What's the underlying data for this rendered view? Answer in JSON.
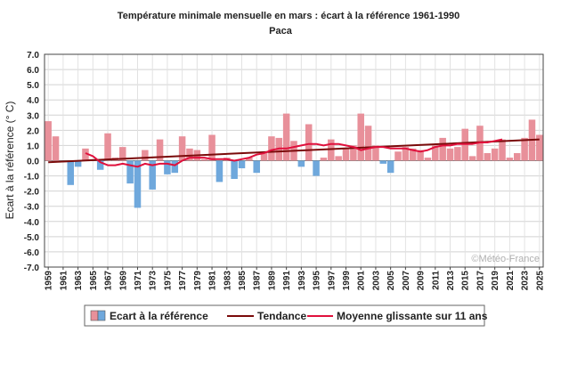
{
  "chart_data": {
    "type": "bar",
    "title": "Température minimale mensuelle en mars : écart à la référence 1961-1990",
    "subtitle": "Paca",
    "ylabel": "Ecart à la référence (° C)",
    "xlabel": "",
    "ylim": [
      -7,
      7
    ],
    "yticks": [
      "7.0",
      "6.0",
      "5.0",
      "4.0",
      "3.0",
      "2.0",
      "1.0",
      "0.0",
      "-1.0",
      "-2.0",
      "-3.0",
      "-4.0",
      "-5.0",
      "-6.0",
      "-7.0"
    ],
    "grid": true,
    "watermark": "©Météo-France",
    "x_labels_rotated": [
      "1959",
      "1961",
      "1963",
      "1965",
      "1967",
      "1969",
      "1971",
      "1973",
      "1975",
      "1977",
      "1979",
      "1981",
      "1983",
      "1985",
      "1987",
      "1989",
      "1991",
      "1993",
      "1995",
      "1997",
      "1999",
      "2001",
      "2003",
      "2005",
      "2007",
      "2009",
      "2011",
      "2013",
      "2015",
      "2017",
      "2019",
      "2021",
      "2023",
      "2025"
    ],
    "years": [
      1959,
      1960,
      1961,
      1962,
      1963,
      1964,
      1965,
      1966,
      1967,
      1968,
      1969,
      1970,
      1971,
      1972,
      1973,
      1974,
      1975,
      1976,
      1977,
      1978,
      1979,
      1980,
      1981,
      1982,
      1983,
      1984,
      1985,
      1986,
      1987,
      1988,
      1989,
      1990,
      1991,
      1992,
      1993,
      1994,
      1995,
      1996,
      1997,
      1998,
      1999,
      2000,
      2001,
      2002,
      2003,
      2004,
      2005,
      2006,
      2007,
      2008,
      2009,
      2010,
      2011,
      2012,
      2013,
      2014,
      2015,
      2016,
      2017,
      2018,
      2019,
      2020,
      2021,
      2022,
      2023,
      2024,
      2025
    ],
    "series": [
      {
        "name": "Ecart à la référence",
        "kind": "bar",
        "positive_color": "#e8909a",
        "negative_color": "#6fa8dc",
        "values": [
          2.6,
          1.6,
          -0.1,
          -1.6,
          -0.4,
          0.8,
          0.1,
          -0.6,
          1.8,
          0.2,
          0.9,
          -1.5,
          -3.1,
          0.7,
          -1.9,
          1.4,
          -0.9,
          -0.8,
          1.6,
          0.8,
          0.7,
          0.1,
          1.7,
          -1.4,
          0.2,
          -1.2,
          -0.5,
          0.2,
          -0.8,
          0.6,
          1.6,
          1.5,
          3.1,
          1.3,
          -0.4,
          2.4,
          -1.0,
          0.2,
          1.4,
          0.3,
          0.8,
          1.0,
          3.1,
          2.3,
          1.0,
          -0.2,
          -0.8,
          0.6,
          0.9,
          0.8,
          0.7,
          0.2,
          1.0,
          1.5,
          0.8,
          0.9,
          2.1,
          0.3,
          2.3,
          0.5,
          0.8,
          1.4,
          0.2,
          0.5,
          1.5,
          2.7,
          1.7
        ]
      },
      {
        "name": "Tendance",
        "kind": "line",
        "color": "#7a0a0a",
        "x": [
          1959,
          2025
        ],
        "values": [
          -0.1,
          1.4
        ]
      },
      {
        "name": "Moyenne glissante sur 11 ans",
        "kind": "line",
        "color": "#e0103c",
        "x": [
          1964,
          1965,
          1966,
          1967,
          1968,
          1969,
          1970,
          1971,
          1972,
          1973,
          1974,
          1975,
          1976,
          1977,
          1978,
          1979,
          1980,
          1981,
          1982,
          1983,
          1984,
          1985,
          1986,
          1987,
          1988,
          1989,
          1990,
          1991,
          1992,
          1993,
          1994,
          1995,
          1996,
          1997,
          1998,
          1999,
          2000,
          2001,
          2002,
          2003,
          2004,
          2005,
          2006,
          2007,
          2008,
          2009,
          2010,
          2011,
          2012,
          2013,
          2014,
          2015,
          2016,
          2017,
          2018,
          2019,
          2020
        ],
        "values": [
          0.5,
          0.3,
          -0.1,
          -0.3,
          -0.3,
          -0.2,
          -0.3,
          -0.4,
          -0.2,
          -0.3,
          -0.2,
          -0.2,
          -0.3,
          0.0,
          0.2,
          0.2,
          0.2,
          0.1,
          0.1,
          0.1,
          0.0,
          0.1,
          0.2,
          0.4,
          0.5,
          0.7,
          0.8,
          0.8,
          0.9,
          1.0,
          1.1,
          1.1,
          1.0,
          1.1,
          1.1,
          1.0,
          0.9,
          0.7,
          0.8,
          0.9,
          0.9,
          0.8,
          0.8,
          0.8,
          0.7,
          0.6,
          0.7,
          0.9,
          1.0,
          1.0,
          1.1,
          1.1,
          1.1,
          1.2,
          1.2,
          1.3,
          1.4
        ]
      }
    ],
    "legend": {
      "placement": "bottom",
      "items": [
        "Ecart à la référence",
        "Tendance",
        "Moyenne glissante sur 11 ans"
      ]
    }
  }
}
